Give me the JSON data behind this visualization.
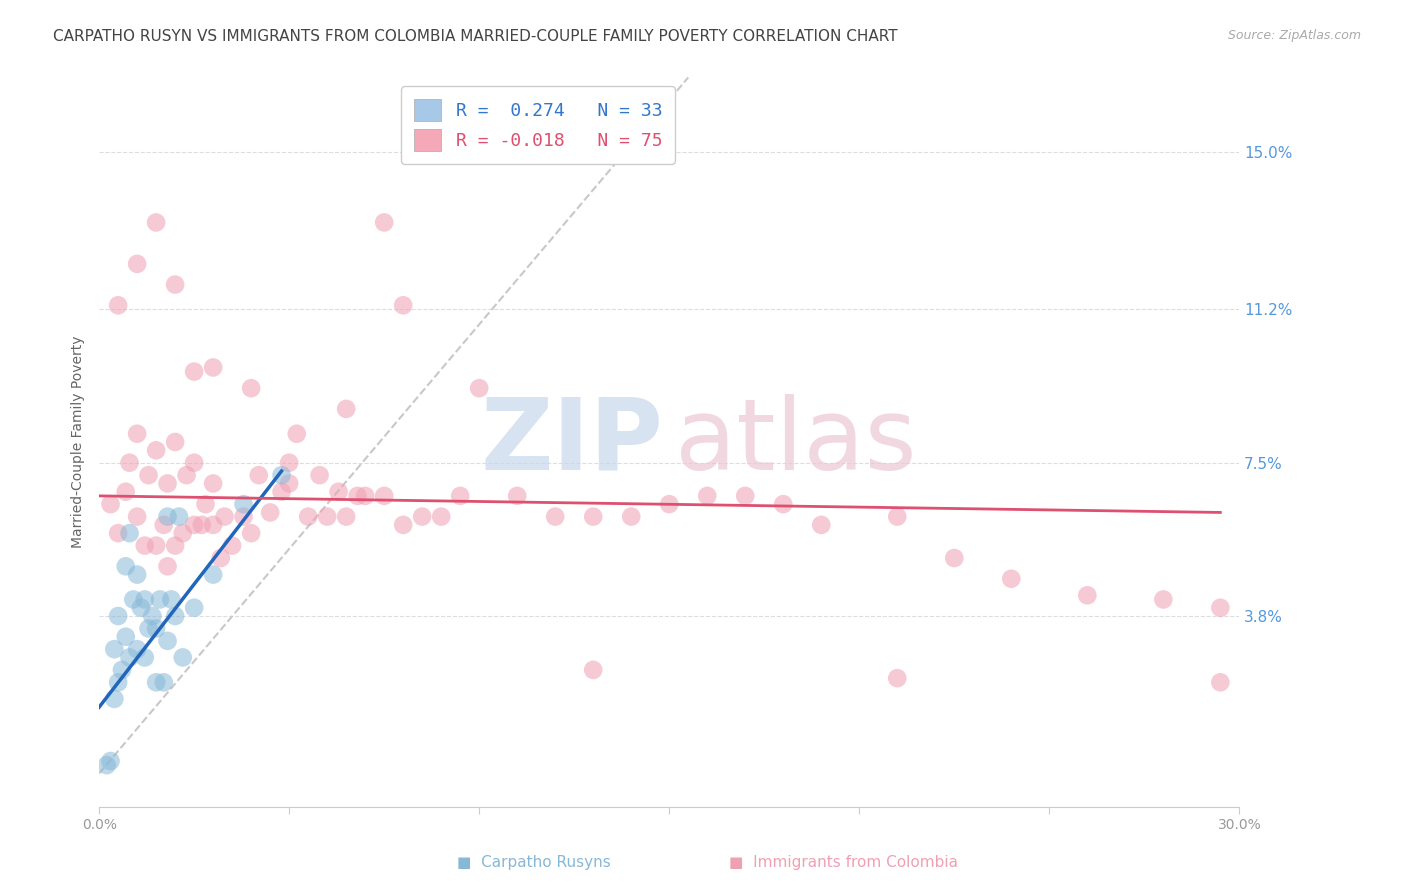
{
  "title": "CARPATHO RUSYN VS IMMIGRANTS FROM COLOMBIA MARRIED-COUPLE FAMILY POVERTY CORRELATION CHART",
  "source": "Source: ZipAtlas.com",
  "ylabel": "Married-Couple Family Poverty",
  "xmin": 0.0,
  "xmax": 0.3,
  "ymin": -0.008,
  "ymax": 0.168,
  "yticks": [
    0.038,
    0.075,
    0.112,
    0.15
  ],
  "ytick_labels": [
    "3.8%",
    "7.5%",
    "11.2%",
    "15.0%"
  ],
  "xticks": [
    0.0,
    0.05,
    0.1,
    0.15,
    0.2,
    0.25,
    0.3
  ],
  "xtick_labels": [
    "0.0%",
    "",
    "",
    "",
    "",
    "",
    "30.0%"
  ],
  "legend_r1": "R =  0.274   N = 33",
  "legend_r2": "R = -0.018   N = 75",
  "legend_color1": "#a8c8e8",
  "legend_color2": "#f4a8b8",
  "blue_color": "#88b8d8",
  "pink_color": "#f0a0b4",
  "trend_blue": "#2266bb",
  "trend_pink": "#dd5070",
  "ref_line_color": "#c8c8c8",
  "watermark_zip_color": "#c8d8ec",
  "watermark_atlas_color": "#ecc8d4",
  "blue_scatter_x": [
    0.002,
    0.003,
    0.004,
    0.004,
    0.005,
    0.005,
    0.006,
    0.007,
    0.007,
    0.008,
    0.008,
    0.009,
    0.01,
    0.01,
    0.011,
    0.012,
    0.012,
    0.013,
    0.014,
    0.015,
    0.015,
    0.016,
    0.017,
    0.018,
    0.018,
    0.019,
    0.02,
    0.021,
    0.022,
    0.025,
    0.03,
    0.038,
    0.048
  ],
  "blue_scatter_y": [
    0.002,
    0.003,
    0.018,
    0.03,
    0.022,
    0.038,
    0.025,
    0.033,
    0.05,
    0.028,
    0.058,
    0.042,
    0.03,
    0.048,
    0.04,
    0.028,
    0.042,
    0.035,
    0.038,
    0.022,
    0.035,
    0.042,
    0.022,
    0.032,
    0.062,
    0.042,
    0.038,
    0.062,
    0.028,
    0.04,
    0.048,
    0.065,
    0.072
  ],
  "pink_scatter_x": [
    0.003,
    0.005,
    0.007,
    0.008,
    0.01,
    0.01,
    0.012,
    0.013,
    0.015,
    0.015,
    0.017,
    0.018,
    0.018,
    0.02,
    0.02,
    0.022,
    0.023,
    0.025,
    0.025,
    0.027,
    0.028,
    0.03,
    0.03,
    0.032,
    0.033,
    0.035,
    0.038,
    0.04,
    0.042,
    0.045,
    0.048,
    0.05,
    0.052,
    0.055,
    0.058,
    0.06,
    0.063,
    0.065,
    0.068,
    0.07,
    0.075,
    0.08,
    0.085,
    0.09,
    0.095,
    0.1,
    0.11,
    0.12,
    0.13,
    0.14,
    0.15,
    0.16,
    0.17,
    0.18,
    0.19,
    0.21,
    0.225,
    0.24,
    0.26,
    0.28,
    0.295,
    0.005,
    0.01,
    0.015,
    0.02,
    0.025,
    0.03,
    0.04,
    0.05,
    0.065,
    0.075,
    0.08,
    0.13,
    0.21,
    0.295
  ],
  "pink_scatter_y": [
    0.065,
    0.058,
    0.068,
    0.075,
    0.062,
    0.082,
    0.055,
    0.072,
    0.055,
    0.078,
    0.06,
    0.05,
    0.07,
    0.055,
    0.08,
    0.058,
    0.072,
    0.06,
    0.075,
    0.06,
    0.065,
    0.06,
    0.07,
    0.052,
    0.062,
    0.055,
    0.062,
    0.058,
    0.072,
    0.063,
    0.068,
    0.07,
    0.082,
    0.062,
    0.072,
    0.062,
    0.068,
    0.062,
    0.067,
    0.067,
    0.067,
    0.06,
    0.062,
    0.062,
    0.067,
    0.093,
    0.067,
    0.062,
    0.062,
    0.062,
    0.065,
    0.067,
    0.067,
    0.065,
    0.06,
    0.062,
    0.052,
    0.047,
    0.043,
    0.042,
    0.04,
    0.113,
    0.123,
    0.133,
    0.118,
    0.097,
    0.098,
    0.093,
    0.075,
    0.088,
    0.133,
    0.113,
    0.025,
    0.023,
    0.022
  ],
  "grid_color": "#dddddd",
  "background_color": "#ffffff"
}
